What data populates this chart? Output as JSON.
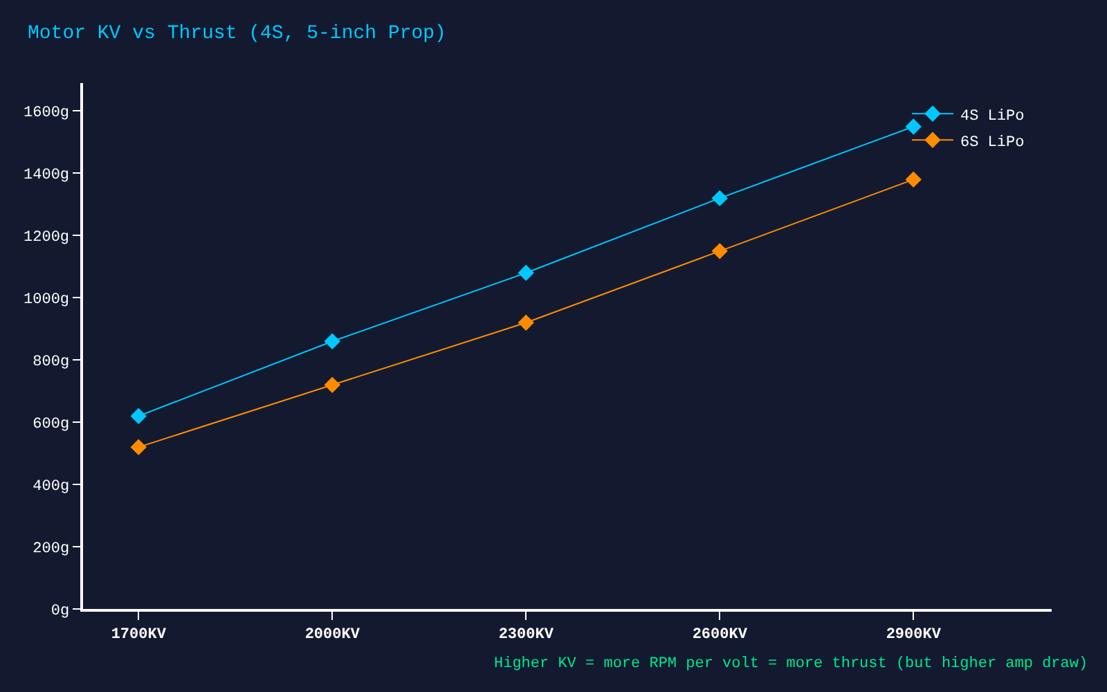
{
  "chart_data": {
    "type": "line",
    "title": "Motor KV vs Thrust (4S, 5-inch Prop)",
    "x": [
      1700,
      2000,
      2300,
      2600,
      2900
    ],
    "series": [
      {
        "name": "4S LiPo",
        "color": "#00c8ff",
        "values": [
          620,
          860,
          1080,
          1320,
          1550
        ]
      },
      {
        "name": "6S LiPo",
        "color": "#ff8c00",
        "values": [
          520,
          720,
          920,
          1150,
          1380
        ]
      }
    ],
    "xlim": [
      1614,
      3114
    ],
    "xticks": [
      {
        "value": 1700,
        "label": "1700KV"
      },
      {
        "value": 2000,
        "label": "2000KV"
      },
      {
        "value": 2300,
        "label": "2300KV"
      },
      {
        "value": 2600,
        "label": "2600KV"
      },
      {
        "value": 2900,
        "label": "2900KV"
      }
    ],
    "ylim": [
      0,
      1690
    ],
    "yticks": [
      {
        "value": 0,
        "label": "0g"
      },
      {
        "value": 200,
        "label": "200g"
      },
      {
        "value": 400,
        "label": "400g"
      },
      {
        "value": 600,
        "label": "600g"
      },
      {
        "value": 800,
        "label": "800g"
      },
      {
        "value": 1000,
        "label": "1000g"
      },
      {
        "value": 1200,
        "label": "1200g"
      },
      {
        "value": 1400,
        "label": "1400g"
      },
      {
        "value": 1600,
        "label": "1600g"
      }
    ],
    "annotations": [
      "Higher KV = more RPM per volt = more thrust (but higher amp draw)"
    ],
    "grid": false,
    "legend": "top right",
    "marker": "diamond",
    "line_style": "solid"
  }
}
